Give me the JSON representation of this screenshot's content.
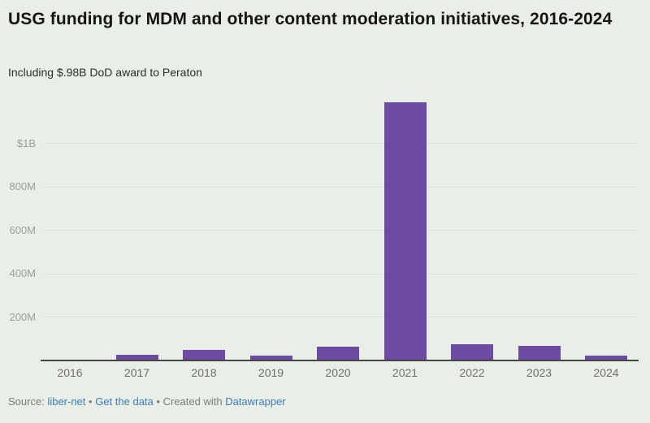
{
  "header": {
    "title": "USG funding for MDM and other content moderation initiatives, 2016-2024",
    "subtitle": "Including $.98B DoD award to Peraton"
  },
  "footer": {
    "source_label": "Source:",
    "source_link": "liber-net",
    "separator": "•",
    "data_link": "Get the data",
    "created_label": "Created with",
    "credit_link": "Datawrapper"
  },
  "colors": {
    "background": "#e9eee6",
    "bar": "#6b4ca2",
    "link": "#3b7cbf",
    "grid": "#dde2da",
    "axis": "#44473f",
    "title": "#141414",
    "subtitle": "#2d2d2d",
    "y_tick": "#9aa099",
    "x_label": "#6f6f6f",
    "footer_text": "#7c7c7c"
  },
  "chart_data": {
    "type": "bar",
    "title": "USG funding for MDM and other content moderation initiatives, 2016-2024",
    "subtitle": "Including $.98B DoD award to Peraton",
    "categories": [
      "2016",
      "2017",
      "2018",
      "2019",
      "2020",
      "2021",
      "2022",
      "2023",
      "2024"
    ],
    "values": [
      0,
      25,
      48,
      23,
      62,
      1190,
      75,
      68,
      24
    ],
    "unit": "USD millions",
    "xlabel": "",
    "ylabel": "",
    "ylim": [
      0,
      1200
    ],
    "yticks": [
      {
        "value": 200,
        "label": "200M"
      },
      {
        "value": 400,
        "label": "400M"
      },
      {
        "value": 600,
        "label": "600M"
      },
      {
        "value": 800,
        "label": "800M"
      },
      {
        "value": 1000,
        "label": "$1B"
      }
    ],
    "grid": "horizontal",
    "legend": "none",
    "bar_color": "#6b4ca2"
  }
}
